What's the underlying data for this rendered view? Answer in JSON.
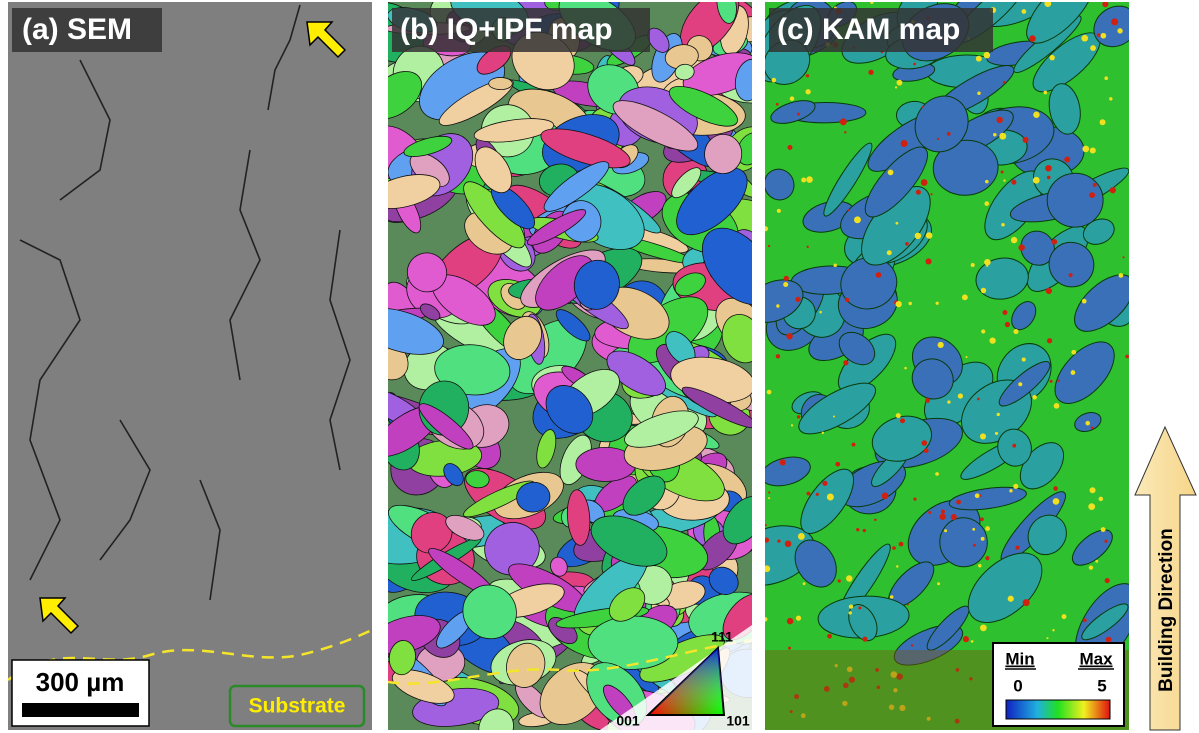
{
  "panels": [
    {
      "label": "(a) SEM",
      "scale_bar": "300 µm",
      "region": "Substrate"
    },
    {
      "label": "(b) IQ+IPF map",
      "ipf_key": {
        "top": "111",
        "left": "001",
        "right": "101"
      }
    },
    {
      "label": "(c) KAM map",
      "kam_key": {
        "min_label": "Min",
        "max_label": "Max",
        "min_value": "0",
        "max_value": "5"
      }
    }
  ],
  "direction_arrow": "Building Direction"
}
